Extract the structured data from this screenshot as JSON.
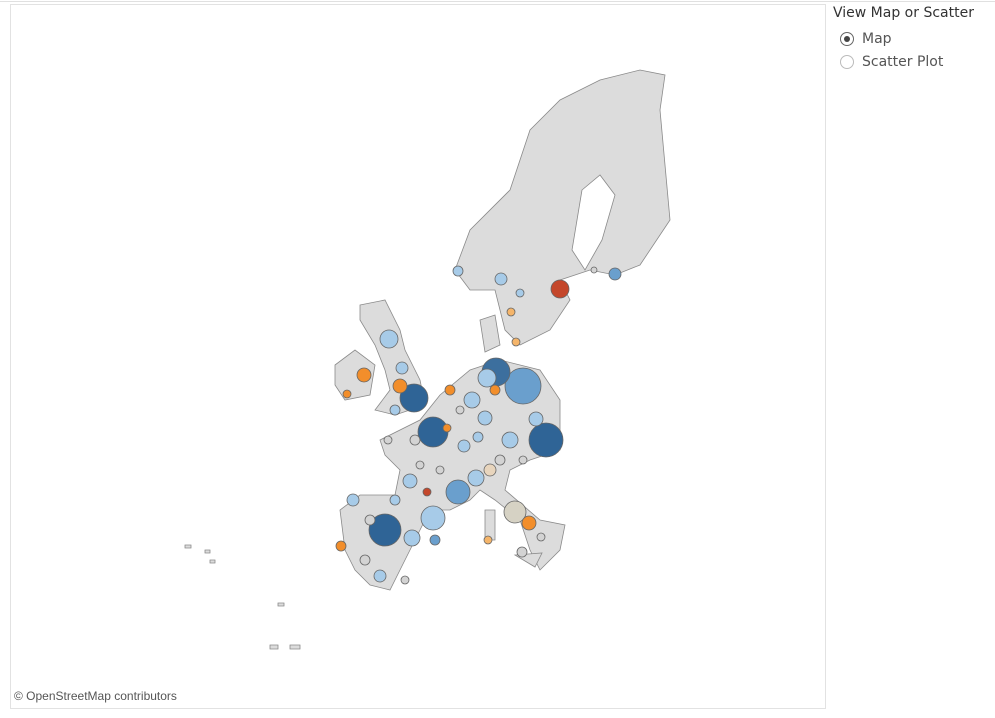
{
  "control": {
    "title": "View Map or Scatter",
    "options": [
      "Map",
      "Scatter Plot"
    ],
    "selected": "Map"
  },
  "map": {
    "attribution": "© OpenStreetMap contributors"
  }
}
